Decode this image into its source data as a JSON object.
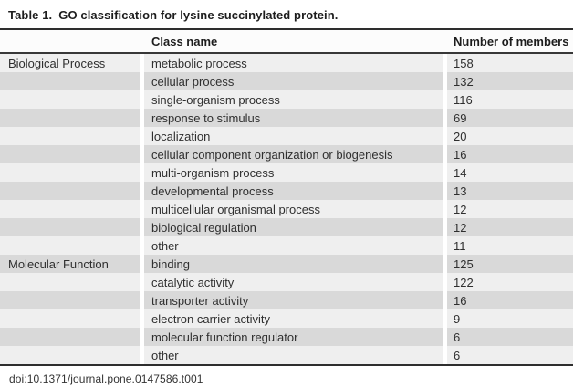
{
  "title": {
    "label": "Table 1.",
    "text": "GO classification for lysine succinylated protein."
  },
  "table": {
    "columns": {
      "group": "",
      "class_name": "Class name",
      "members": "Number of members"
    },
    "rows": [
      {
        "group": "Biological Process",
        "class": "metabolic process",
        "count": 158
      },
      {
        "group": "",
        "class": "cellular process",
        "count": 132
      },
      {
        "group": "",
        "class": "single-organism process",
        "count": 116
      },
      {
        "group": "",
        "class": "response to stimulus",
        "count": 69
      },
      {
        "group": "",
        "class": "localization",
        "count": 20
      },
      {
        "group": "",
        "class": "cellular component organization or biogenesis",
        "count": 16
      },
      {
        "group": "",
        "class": "multi-organism process",
        "count": 14
      },
      {
        "group": "",
        "class": "developmental process",
        "count": 13
      },
      {
        "group": "",
        "class": "multicellular organismal process",
        "count": 12
      },
      {
        "group": "",
        "class": "biological regulation",
        "count": 12
      },
      {
        "group": "",
        "class": "other",
        "count": 11
      },
      {
        "group": "Molecular Function",
        "class": "binding",
        "count": 125
      },
      {
        "group": "",
        "class": "catalytic activity",
        "count": 122
      },
      {
        "group": "",
        "class": "transporter activity",
        "count": 16
      },
      {
        "group": "",
        "class": "electron carrier activity",
        "count": 9
      },
      {
        "group": "",
        "class": "molecular function regulator",
        "count": 6
      },
      {
        "group": "",
        "class": "other",
        "count": 6
      }
    ]
  },
  "footer": {
    "doi": "doi:10.1371/journal.pone.0147586.t001"
  },
  "colors": {
    "stripe_dark": "#d9d9d9",
    "stripe_light": "#efefef",
    "rule": "#2e2e2e",
    "text": "#2f2f2f",
    "page_background": "#ffffff"
  }
}
